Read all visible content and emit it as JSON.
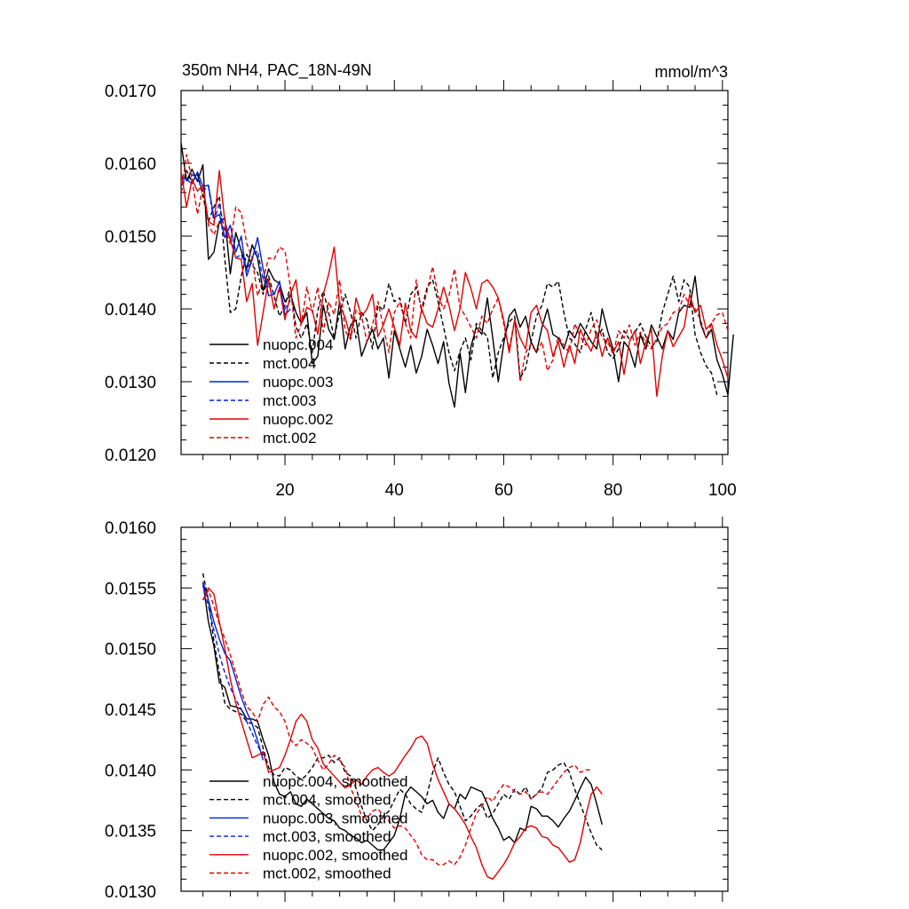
{
  "chart_data": [
    {
      "type": "line",
      "title": "350m NH4, PAC_18N-49N",
      "units": "mmol/m^3",
      "xlim": [
        1,
        101
      ],
      "ylim": [
        0.012,
        0.017
      ],
      "xticks": [
        20,
        40,
        60,
        80,
        100
      ],
      "yticks": [
        0.012,
        0.013,
        0.014,
        0.015,
        0.016,
        0.017
      ],
      "ytick_labels": [
        "0.0120",
        "0.0130",
        "0.0140",
        "0.0150",
        "0.0160",
        "0.0170"
      ],
      "legend_location": "lower-left",
      "series": [
        {
          "name": "nuopc.004",
          "color": "#000000",
          "dash": "solid",
          "x_start": 1,
          "values": [
            0.01628,
            0.01576,
            0.01592,
            0.01575,
            0.01598,
            0.01468,
            0.01478,
            0.0152,
            0.01525,
            0.01448,
            0.01505,
            0.0148,
            0.01455,
            0.01488,
            0.0147,
            0.01425,
            0.01455,
            0.0144,
            0.01435,
            0.0141,
            0.0142,
            0.01395,
            0.0138,
            0.01395,
            0.01325,
            0.01335,
            0.01405,
            0.01372,
            0.01358,
            0.0141,
            0.01345,
            0.01378,
            0.01385,
            0.01335,
            0.01355,
            0.01372,
            0.01345,
            0.0136,
            0.01305,
            0.0137,
            0.01345,
            0.0132,
            0.0135,
            0.01312,
            0.01335,
            0.01372,
            0.0135,
            0.01325,
            0.01355,
            0.01298,
            0.01265,
            0.0134,
            0.01285,
            0.01348,
            0.01375,
            0.01365,
            0.01415,
            0.0136,
            0.013,
            0.01352,
            0.0139,
            0.014,
            0.01375,
            0.0139,
            0.01355,
            0.0134,
            0.01375,
            0.014,
            0.01365,
            0.0136,
            0.01345,
            0.0137,
            0.0136,
            0.0138,
            0.01368,
            0.01355,
            0.01345,
            0.014,
            0.0137,
            0.01345,
            0.013,
            0.01355,
            0.01345,
            0.0132,
            0.01365,
            0.01345,
            0.01378,
            0.01362,
            0.01345,
            0.0137,
            0.01358,
            0.01395,
            0.01405,
            0.01402,
            0.01445,
            0.0138,
            0.0136,
            0.01372,
            0.0133,
            0.0131,
            0.01282,
            0.01365
          ]
        },
        {
          "name": "mct.004",
          "color": "#000000",
          "dash": "dashed",
          "x_start": 1,
          "values": [
            0.0156,
            0.0159,
            0.01575,
            0.01585,
            0.01555,
            0.0152,
            0.0154,
            0.01555,
            0.01468,
            0.01395,
            0.014,
            0.01445,
            0.01475,
            0.0146,
            0.0145,
            0.0142,
            0.01445,
            0.01418,
            0.0139,
            0.01405,
            0.0143,
            0.01375,
            0.0136,
            0.0138,
            0.0134,
            0.01398,
            0.01425,
            0.01395,
            0.0136,
            0.01395,
            0.0142,
            0.01395,
            0.0136,
            0.01395,
            0.01385,
            0.01345,
            0.01405,
            0.01398,
            0.01435,
            0.0141,
            0.01415,
            0.0138,
            0.0142,
            0.0143,
            0.014,
            0.0143,
            0.0144,
            0.0141,
            0.01375,
            0.0134,
            0.01315,
            0.01342,
            0.0136,
            0.0133,
            0.0138,
            0.0137,
            0.01362,
            0.01305,
            0.0134,
            0.0136,
            0.01382,
            0.0139,
            0.01305,
            0.01318,
            0.01355,
            0.0139,
            0.01405,
            0.01435,
            0.0143,
            0.01438,
            0.01395,
            0.0136,
            0.01352,
            0.0134,
            0.01372,
            0.01395,
            0.0136,
            0.01372,
            0.0134,
            0.01332,
            0.01345,
            0.0137,
            0.01358,
            0.01368,
            0.0138,
            0.01362,
            0.01348,
            0.01355,
            0.01395,
            0.0142,
            0.01445,
            0.0141,
            0.0144,
            0.0143,
            0.01365,
            0.0134,
            0.01322,
            0.01312,
            0.01282
          ]
        },
        {
          "name": "nuopc.003",
          "color": "#0020e0",
          "dash": "solid",
          "x_start": 1,
          "values": [
            0.01582,
            0.01578,
            0.01572,
            0.01588,
            0.01568,
            0.0157,
            0.01525,
            0.0153,
            0.01498,
            0.01515,
            0.01478,
            0.015,
            0.01445,
            0.01468,
            0.01498,
            0.01455,
            0.01418,
            0.0142,
            0.01438,
            0.01392,
            0.014
          ]
        },
        {
          "name": "mct.003",
          "color": "#0020e0",
          "dash": "dashed",
          "x_start": 1,
          "values": [
            0.0158,
            0.01575,
            0.01585,
            0.01578,
            0.01562,
            0.01568,
            0.0152,
            0.01545,
            0.01505,
            0.015,
            0.0147,
            0.01475,
            0.01452,
            0.0147,
            0.0148,
            0.0144,
            0.01432,
            0.0142,
            0.01425,
            0.014,
            0.01412
          ]
        },
        {
          "name": "nuopc.002",
          "color": "#e00000",
          "dash": "solid",
          "x_start": 1,
          "values": [
            0.0159,
            0.0154,
            0.01578,
            0.01562,
            0.0157,
            0.0152,
            0.01515,
            0.0159,
            0.0152,
            0.01495,
            0.0147,
            0.01468,
            0.0141,
            0.01435,
            0.0135,
            0.01395,
            0.0144,
            0.014,
            0.0143,
            0.01385,
            0.0142,
            0.0144,
            0.0138,
            0.01402,
            0.01398,
            0.01365,
            0.0142,
            0.01448,
            0.01485,
            0.01405,
            0.01388,
            0.0136,
            0.01415,
            0.0139,
            0.014,
            0.0142,
            0.01362,
            0.01378,
            0.014,
            0.01375,
            0.0135,
            0.01408,
            0.0137,
            0.0136,
            0.014,
            0.0138,
            0.01375,
            0.014,
            0.0143,
            0.01405,
            0.0137,
            0.014,
            0.0145,
            0.01428,
            0.014,
            0.01435,
            0.0144,
            0.0143,
            0.01415,
            0.01385,
            0.0134,
            0.01385,
            0.0136,
            0.01345,
            0.01395,
            0.01405,
            0.0138,
            0.0137,
            0.01335,
            0.01355,
            0.0132,
            0.0135,
            0.01325,
            0.01372,
            0.01355,
            0.01342,
            0.01368,
            0.01335,
            0.0136,
            0.0134,
            0.01355,
            0.0131,
            0.01355,
            0.0137,
            0.01325,
            0.01355,
            0.01372,
            0.0128,
            0.01335,
            0.0137,
            0.01348,
            0.01362,
            0.01375,
            0.0142,
            0.01395,
            0.01405,
            0.01372,
            0.0138,
            0.0135,
            0.0133,
            0.01305
          ]
        },
        {
          "name": "mct.002",
          "color": "#e00000",
          "dash": "dashed",
          "x_start": 1,
          "values": [
            0.0156,
            0.01612,
            0.01578,
            0.0153,
            0.01568,
            0.01515,
            0.01502,
            0.0152,
            0.0151,
            0.0149,
            0.0154,
            0.01532,
            0.0149,
            0.0147,
            0.01418,
            0.0144,
            0.0147,
            0.01468,
            0.01485,
            0.0148,
            0.0143,
            0.0136,
            0.0138,
            0.0143,
            0.01395,
            0.0143,
            0.01368,
            0.0141,
            0.01392,
            0.0144,
            0.0137,
            0.01358,
            0.01398,
            0.0139,
            0.01355,
            0.01378,
            0.0141,
            0.01375,
            0.0134,
            0.01395,
            0.0141,
            0.0138,
            0.0136,
            0.0144,
            0.01395,
            0.01425,
            0.01458,
            0.01418,
            0.014,
            0.01418,
            0.01455,
            0.01402,
            0.0139,
            0.01375,
            0.0136,
            0.0139,
            0.0138,
            0.014,
            0.01415,
            0.0138,
            0.01345,
            0.01385,
            0.013,
            0.0134,
            0.01352,
            0.0134,
            0.01355,
            0.01315,
            0.0133,
            0.01362,
            0.0135,
            0.0134,
            0.0138,
            0.01362,
            0.0135,
            0.01372,
            0.01385,
            0.0136,
            0.01355,
            0.01338,
            0.0137,
            0.0136,
            0.01378,
            0.0135,
            0.01368,
            0.01352,
            0.01345,
            0.0136,
            0.01375,
            0.0138,
            0.01395,
            0.01398,
            0.0142,
            0.01405,
            0.014,
            0.01385,
            0.0136,
            0.0138,
            0.01392,
            0.01395,
            0.0137
          ]
        }
      ]
    },
    {
      "type": "line",
      "xlim": [
        1,
        101
      ],
      "ylim": [
        0.013,
        0.016
      ],
      "xticks": [
        20,
        40,
        60,
        80,
        100
      ],
      "yticks": [
        0.013,
        0.0135,
        0.014,
        0.0145,
        0.015,
        0.0155,
        0.016
      ],
      "ytick_labels": [
        "0.0130",
        "0.0135",
        "0.0140",
        "0.0145",
        "0.0150",
        "0.0155",
        "0.0160"
      ],
      "legend_location": "lower-left",
      "series": [
        {
          "name": "nuopc.004, smoothed",
          "color": "#000000",
          "dash": "solid",
          "x_start": 5,
          "values": [
            0.01555,
            0.01522,
            0.01502,
            0.01472,
            0.01468,
            0.01453,
            0.01452,
            0.0145,
            0.01442,
            0.01442,
            0.0144,
            0.01425,
            0.01412,
            0.0139,
            0.0138,
            0.01378,
            0.01382,
            0.01372,
            0.0137,
            0.01376,
            0.01372,
            0.01368,
            0.01364,
            0.0136,
            0.01358,
            0.01352,
            0.0135,
            0.01346,
            0.01344,
            0.0134,
            0.01342,
            0.01338,
            0.01334,
            0.01334,
            0.0134,
            0.01346,
            0.0136,
            0.0138,
            0.01386,
            0.01382,
            0.01378,
            0.01372,
            0.01375,
            0.01365,
            0.0136,
            0.01372,
            0.01368,
            0.0138,
            0.01376,
            0.01386,
            0.01384,
            0.01382,
            0.01372,
            0.0136,
            0.01352,
            0.01342,
            0.01345,
            0.0134,
            0.01352,
            0.0135,
            0.0137,
            0.01368,
            0.01362,
            0.01362,
            0.01358,
            0.01353,
            0.0136,
            0.01366,
            0.01375,
            0.01385,
            0.01394,
            0.01388,
            0.01372,
            0.01355
          ]
        },
        {
          "name": "mct.004, smoothed",
          "color": "#000000",
          "dash": "dashed",
          "x_start": 5,
          "values": [
            0.01562,
            0.0154,
            0.01506,
            0.0148,
            0.01455,
            0.0145,
            0.01448,
            0.01446,
            0.0144,
            0.01438,
            0.01435,
            0.01418,
            0.01402,
            0.01396,
            0.01395,
            0.01402,
            0.014,
            0.01395,
            0.01392,
            0.01396,
            0.01402,
            0.0141,
            0.0141,
            0.01412,
            0.01406,
            0.0141,
            0.01398,
            0.01395,
            0.01385,
            0.0137,
            0.01358,
            0.0135,
            0.01355,
            0.01362,
            0.01366,
            0.01375,
            0.01384,
            0.0138,
            0.01372,
            0.01368,
            0.01365,
            0.0138,
            0.01398,
            0.0141,
            0.01398,
            0.01388,
            0.01382,
            0.0137,
            0.01358,
            0.01362,
            0.01368,
            0.01372,
            0.0136,
            0.01364,
            0.01372,
            0.0138,
            0.01376,
            0.01384,
            0.0138,
            0.01386,
            0.01376,
            0.0138,
            0.01385,
            0.01398,
            0.014,
            0.01404,
            0.01406,
            0.01398,
            0.01384,
            0.01372,
            0.0136,
            0.01348,
            0.01338,
            0.01334
          ]
        },
        {
          "name": "nuopc.003, smoothed",
          "color": "#0020e0",
          "dash": "solid",
          "x_start": 5,
          "values": [
            0.01555,
            0.0154,
            0.01522,
            0.01508,
            0.01496,
            0.0149,
            0.01475,
            0.0146,
            0.01448,
            0.01438,
            0.01424,
            0.01408
          ]
        },
        {
          "name": "mct.003, smoothed",
          "color": "#0020e0",
          "dash": "dashed",
          "x_start": 5,
          "values": [
            0.01552,
            0.01535,
            0.01515,
            0.01495,
            0.0148,
            0.01468,
            0.01458,
            0.0145,
            0.0144,
            0.0143,
            0.0142,
            0.01412
          ]
        },
        {
          "name": "nuopc.002, smoothed",
          "color": "#e00000",
          "dash": "solid",
          "x_start": 5,
          "values": [
            0.0154,
            0.0155,
            0.01545,
            0.01522,
            0.015,
            0.01475,
            0.01455,
            0.0144,
            0.01425,
            0.0141,
            0.01412,
            0.01415,
            0.01398,
            0.014,
            0.01402,
            0.01412,
            0.01425,
            0.0144,
            0.01446,
            0.0144,
            0.01425,
            0.01418,
            0.01405,
            0.014,
            0.01395,
            0.0139,
            0.01385,
            0.01388,
            0.01392,
            0.01388,
            0.01395,
            0.014,
            0.01402,
            0.01398,
            0.01395,
            0.01398,
            0.01405,
            0.01412,
            0.01418,
            0.01426,
            0.01428,
            0.01422,
            0.01405,
            0.01392,
            0.01382,
            0.01372,
            0.01368,
            0.01362,
            0.01355,
            0.01345,
            0.01336,
            0.01322,
            0.01312,
            0.0131,
            0.01316,
            0.01322,
            0.0133,
            0.0134,
            0.01345,
            0.01352,
            0.01354,
            0.01352,
            0.01345,
            0.01344,
            0.01338,
            0.01336,
            0.0133,
            0.01324,
            0.01326,
            0.0134,
            0.01362,
            0.0138,
            0.01386,
            0.0138
          ]
        },
        {
          "name": "mct.002, smoothed",
          "color": "#e00000",
          "dash": "dashed",
          "x_start": 5,
          "values": [
            0.0154,
            0.01548,
            0.01535,
            0.0152,
            0.01508,
            0.01495,
            0.0148,
            0.01465,
            0.01452,
            0.01448,
            0.0144,
            0.01454,
            0.0146,
            0.01452,
            0.01448,
            0.0144,
            0.01425,
            0.0142,
            0.01425,
            0.01422,
            0.01418,
            0.01408,
            0.014,
            0.01405,
            0.01412,
            0.01408,
            0.01402,
            0.01385,
            0.01375,
            0.01362,
            0.0136,
            0.01366,
            0.01368,
            0.01362,
            0.01358,
            0.01352,
            0.01354,
            0.01352,
            0.01346,
            0.0134,
            0.0133,
            0.01326,
            0.01326,
            0.01322,
            0.01322,
            0.01325,
            0.01322,
            0.01328,
            0.01338,
            0.01352,
            0.01364,
            0.0137,
            0.01378,
            0.01374,
            0.01382,
            0.01388,
            0.01386,
            0.01382,
            0.0138,
            0.01382,
            0.01376,
            0.0138,
            0.01382,
            0.0138,
            0.01386,
            0.01392,
            0.01398,
            0.01402,
            0.01404,
            0.01398,
            0.014,
            0.014
          ]
        }
      ]
    }
  ]
}
